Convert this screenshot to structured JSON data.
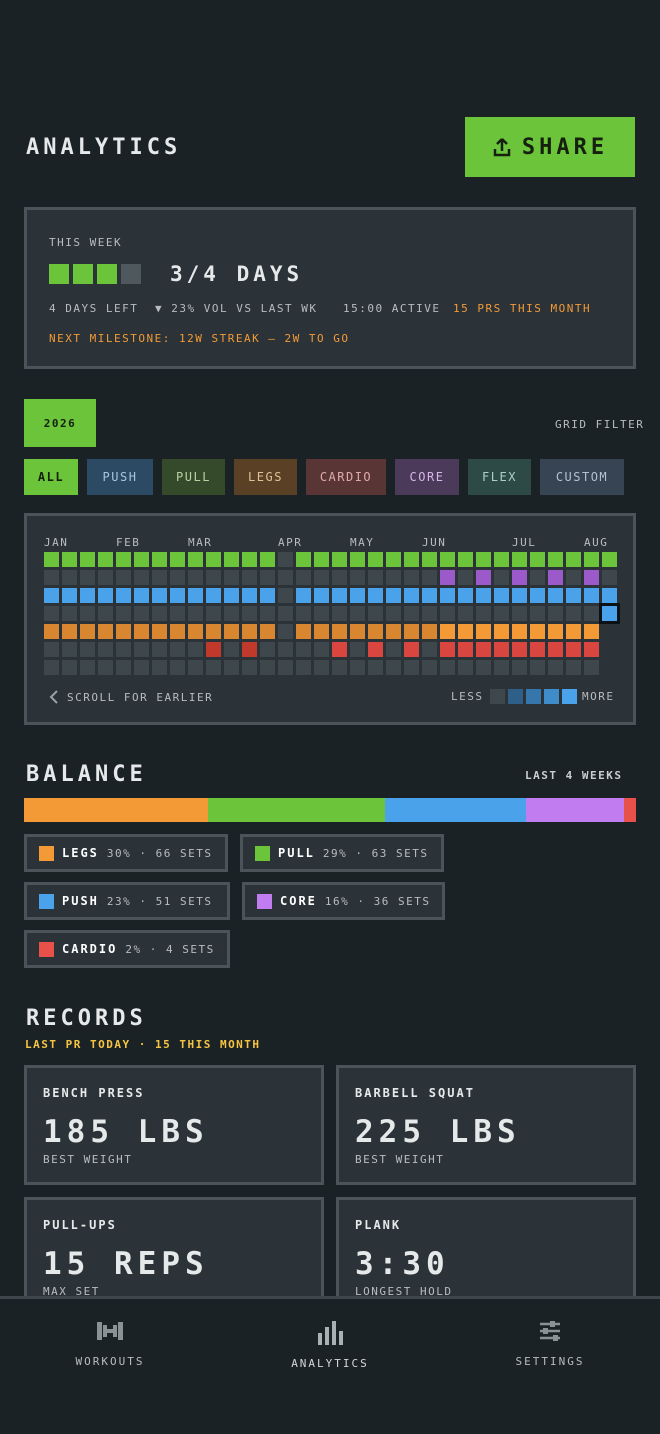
{
  "header": {
    "title": "ANALYTICS",
    "share_label": "SHARE"
  },
  "week": {
    "label": "THIS WEEK",
    "days_done": 3,
    "days_total": 4,
    "days_text": "3/4 DAYS",
    "days_left": "4 DAYS LEFT",
    "volume_change": "▼ 23% VOL VS LAST WK",
    "active": "15:00 ACTIVE",
    "prs": "15 PRS THIS MONTH",
    "milestone": "NEXT MILESTONE: 12W STREAK — 2W TO GO"
  },
  "year": {
    "label": "2026",
    "grid_filter": "GRID FILTER"
  },
  "filters": [
    "ALL",
    "PUSH",
    "PULL",
    "LEGS",
    "CARDIO",
    "CORE",
    "FLEX",
    "CUSTOM"
  ],
  "heatmap": {
    "months": [
      "JAN",
      "FEB",
      "MAR",
      "APR",
      "MAY",
      "JUN",
      "JUL",
      "AUG"
    ],
    "scroll_hint": "SCROLL FOR EARLIER",
    "less": "LESS",
    "more": "MORE"
  },
  "balance": {
    "title": "BALANCE",
    "period": "LAST 4 WEEKS",
    "items": [
      {
        "name": "LEGS",
        "stat": "30% · 66 SETS",
        "percent": 30,
        "color": "#f39a36"
      },
      {
        "name": "PULL",
        "stat": "29% · 63 SETS",
        "percent": 29,
        "color": "#6cc43a"
      },
      {
        "name": "PUSH",
        "stat": "23% · 51 SETS",
        "percent": 23,
        "color": "#4aa3ea"
      },
      {
        "name": "CORE",
        "stat": "16% · 36 SETS",
        "percent": 16,
        "color": "#c17cf0"
      },
      {
        "name": "CARDIO",
        "stat": "2% · 4 SETS",
        "percent": 2,
        "color": "#e8504a"
      }
    ]
  },
  "records": {
    "title": "RECORDS",
    "subtitle": "LAST PR TODAY · 15 THIS MONTH",
    "items": [
      {
        "name": "BENCH PRESS",
        "value": "185 LBS",
        "label": "BEST WEIGHT"
      },
      {
        "name": "BARBELL SQUAT",
        "value": "225 LBS",
        "label": "BEST WEIGHT"
      },
      {
        "name": "PULL-UPS",
        "value": "15 REPS",
        "label": "MAX SET"
      },
      {
        "name": "PLANK",
        "value": "3:30",
        "label": "LONGEST HOLD"
      }
    ]
  },
  "nav": {
    "workouts": "WORKOUTS",
    "analytics": "ANALYTICS",
    "settings": "SETTINGS"
  },
  "colors": {
    "accent": "#6cc43a",
    "orange": "#f39a36",
    "bg": "#1b2226",
    "panel": "#2c3338"
  }
}
